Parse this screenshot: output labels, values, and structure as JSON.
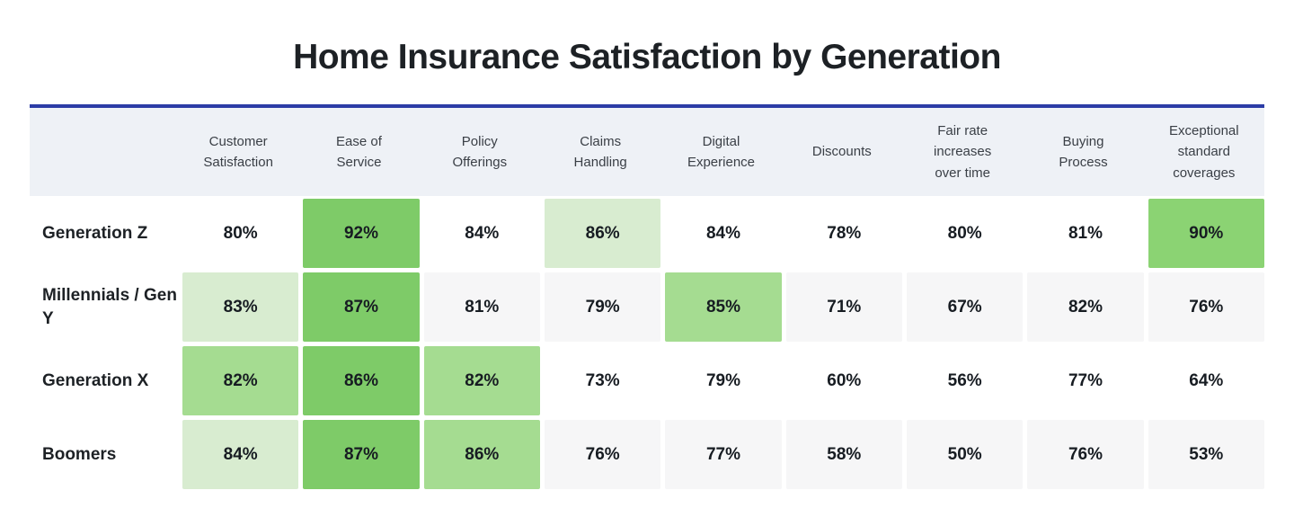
{
  "title": "Home Insurance Satisfaction by Generation",
  "colors": {
    "accent_line": "#2c3ca6",
    "header_bg": "#eef1f6",
    "row_stripe": "#f6f6f7",
    "row_plain": "#ffffff",
    "title_text": "#1d2125",
    "header_text": "#3a3f46",
    "cell_text": "#171c22",
    "greens": {
      "dark": "#7ecb68",
      "dark2": "#8bd373",
      "mid": "#a5dc91",
      "light": "#d8ecd0"
    }
  },
  "chart_data": {
    "type": "heatmap",
    "title": "Home Insurance Satisfaction by Generation",
    "unit": "%",
    "legend": "none",
    "columns": [
      "Customer Satisfaction",
      "Ease of Service",
      "Policy Offerings",
      "Claims Handling",
      "Digital Experience",
      "Discounts",
      "Fair rate increases over time",
      "Buying Process",
      "Exceptional standard coverages"
    ],
    "rows": [
      {
        "name": "Generation Z",
        "values": [
          80,
          92,
          84,
          86,
          84,
          78,
          80,
          81,
          90
        ],
        "highlights": [
          null,
          "dark",
          null,
          "light",
          null,
          null,
          null,
          null,
          "dark2"
        ]
      },
      {
        "name": "Millennials / Gen Y",
        "values": [
          83,
          87,
          81,
          79,
          85,
          71,
          67,
          82,
          76
        ],
        "highlights": [
          "light",
          "dark",
          null,
          null,
          "mid",
          null,
          null,
          null,
          null
        ]
      },
      {
        "name": "Generation X",
        "values": [
          82,
          86,
          82,
          73,
          79,
          60,
          56,
          77,
          64
        ],
        "highlights": [
          "mid",
          "dark",
          "mid",
          null,
          null,
          null,
          null,
          null,
          null
        ]
      },
      {
        "name": "Boomers",
        "values": [
          84,
          87,
          86,
          76,
          77,
          58,
          50,
          76,
          53
        ],
        "highlights": [
          "light",
          "dark",
          "mid",
          null,
          null,
          null,
          null,
          null,
          null
        ]
      }
    ],
    "row_stripes": [
      false,
      true,
      false,
      true
    ]
  }
}
